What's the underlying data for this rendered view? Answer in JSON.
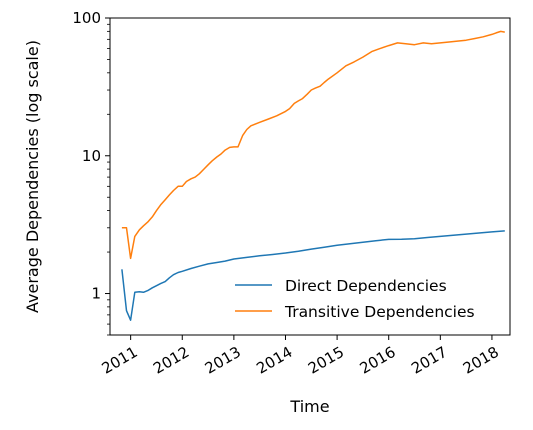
{
  "chart_data": {
    "type": "line",
    "title": "",
    "xlabel": "Time",
    "ylabel": "Average Dependencies (log scale)",
    "yscale": "log",
    "ylim": [
      0.5,
      100
    ],
    "xlim": [
      2010.6,
      2018.35
    ],
    "xticks": [
      {
        "value": 2011,
        "label": "2011"
      },
      {
        "value": 2012,
        "label": "2012"
      },
      {
        "value": 2013,
        "label": "2013"
      },
      {
        "value": 2014,
        "label": "2014"
      },
      {
        "value": 2015,
        "label": "2015"
      },
      {
        "value": 2016,
        "label": "2016"
      },
      {
        "value": 2017,
        "label": "2017"
      },
      {
        "value": 2018,
        "label": "2018"
      }
    ],
    "yticks": [
      {
        "value": 1,
        "label": "1"
      },
      {
        "value": 10,
        "label": "10"
      },
      {
        "value": 100,
        "label": "100"
      }
    ],
    "grid": false,
    "legend_position": "lower-right",
    "series": [
      {
        "name": "Direct Dependencies",
        "color": "#1f77b4",
        "x": [
          2010.83,
          2010.92,
          2011.0,
          2011.08,
          2011.17,
          2011.25,
          2011.33,
          2011.42,
          2011.5,
          2011.58,
          2011.67,
          2011.75,
          2011.83,
          2011.92,
          2012.0,
          2012.17,
          2012.33,
          2012.5,
          2012.67,
          2012.83,
          2013.0,
          2013.25,
          2013.5,
          2013.75,
          2014.0,
          2014.25,
          2014.5,
          2014.75,
          2015.0,
          2015.25,
          2015.5,
          2015.75,
          2016.0,
          2016.25,
          2016.5,
          2016.75,
          2017.0,
          2017.25,
          2017.5,
          2017.75,
          2018.0,
          2018.25
        ],
        "y": [
          1.5,
          0.75,
          0.64,
          1.02,
          1.03,
          1.02,
          1.05,
          1.1,
          1.14,
          1.18,
          1.22,
          1.3,
          1.37,
          1.42,
          1.45,
          1.52,
          1.58,
          1.64,
          1.68,
          1.72,
          1.78,
          1.83,
          1.88,
          1.92,
          1.97,
          2.03,
          2.1,
          2.17,
          2.24,
          2.3,
          2.36,
          2.42,
          2.47,
          2.48,
          2.5,
          2.55,
          2.6,
          2.65,
          2.7,
          2.75,
          2.8,
          2.85
        ]
      },
      {
        "name": "Transitive Dependencies",
        "color": "#ff7f0e",
        "x": [
          2010.83,
          2010.92,
          2011.0,
          2011.08,
          2011.17,
          2011.25,
          2011.33,
          2011.42,
          2011.5,
          2011.58,
          2011.67,
          2011.75,
          2011.83,
          2011.92,
          2012.0,
          2012.08,
          2012.17,
          2012.25,
          2012.33,
          2012.42,
          2012.5,
          2012.58,
          2012.67,
          2012.75,
          2012.83,
          2012.92,
          2013.0,
          2013.08,
          2013.17,
          2013.25,
          2013.33,
          2013.5,
          2013.67,
          2013.83,
          2014.0,
          2014.08,
          2014.17,
          2014.25,
          2014.33,
          2014.42,
          2014.5,
          2014.58,
          2014.67,
          2014.75,
          2014.83,
          2015.0,
          2015.17,
          2015.33,
          2015.5,
          2015.67,
          2015.83,
          2016.0,
          2016.17,
          2016.33,
          2016.5,
          2016.67,
          2016.83,
          2017.0,
          2017.17,
          2017.33,
          2017.5,
          2017.67,
          2017.83,
          2018.0,
          2018.08,
          2018.17,
          2018.25
        ],
        "y": [
          3.0,
          3.0,
          1.8,
          2.6,
          2.9,
          3.1,
          3.3,
          3.6,
          4.0,
          4.4,
          4.8,
          5.2,
          5.6,
          6.0,
          6.0,
          6.5,
          6.8,
          7.0,
          7.4,
          8.0,
          8.6,
          9.2,
          9.8,
          10.3,
          11.0,
          11.5,
          11.6,
          11.6,
          14.0,
          15.5,
          16.5,
          17.5,
          18.5,
          19.5,
          21.0,
          22.0,
          24.0,
          25.0,
          26.0,
          28.0,
          30.0,
          31.0,
          32.0,
          34.0,
          36.0,
          40.0,
          45.0,
          48.0,
          52.0,
          57.0,
          60.0,
          63.0,
          66.0,
          65.0,
          64.0,
          66.0,
          65.0,
          66.0,
          67.0,
          68.0,
          69.0,
          71.0,
          73.0,
          76.0,
          78.0,
          80.0,
          79.0
        ]
      }
    ]
  }
}
